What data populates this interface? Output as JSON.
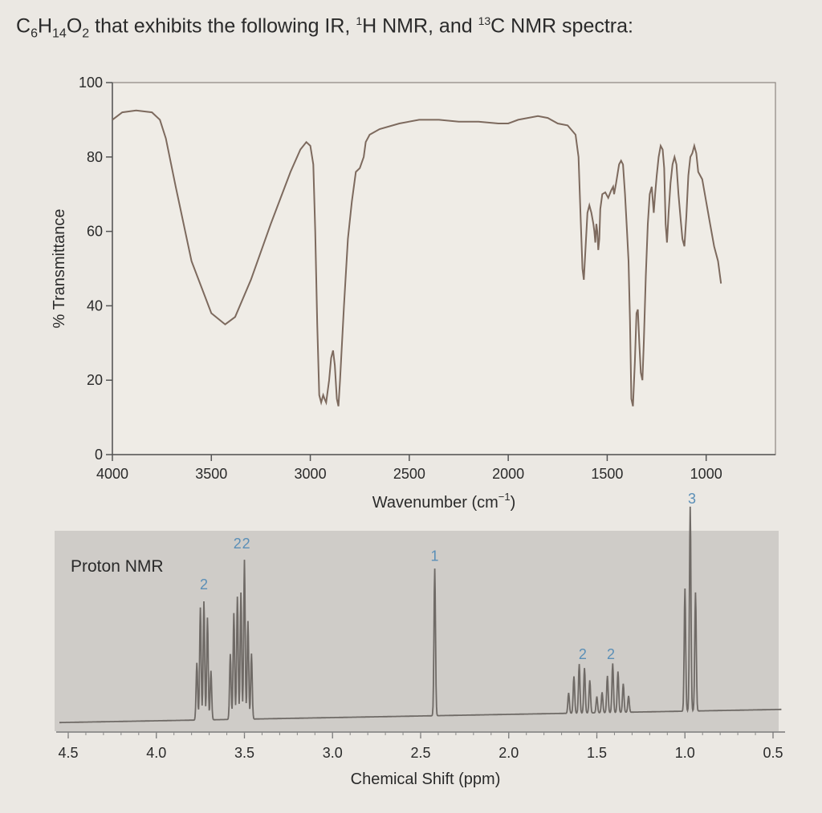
{
  "heading": {
    "formula_prefix": "C",
    "formula_sub1": "6",
    "formula_mid1": "H",
    "formula_sub2": "14",
    "formula_mid2": "O",
    "formula_sub3": "2",
    "text1": " that exhibits the following IR, ",
    "sup_h": "1",
    "text2": "H NMR, and ",
    "sup_c": "13",
    "text3": "C NMR spectra:"
  },
  "chart_data": [
    {
      "type": "line",
      "name": "ir-spectrum",
      "title": "",
      "xlabel": "Wavenumber (cm",
      "xlabel_sup": "−1",
      "xlabel_tail": ")",
      "ylabel": "% Transmittance",
      "xlim": [
        4000,
        650
      ],
      "ylim": [
        0,
        100
      ],
      "x_reversed": true,
      "x_ticks": [
        4000,
        3500,
        3000,
        2500,
        2000,
        1500,
        1000
      ],
      "y_ticks": [
        0,
        20,
        40,
        60,
        80,
        100
      ],
      "grid": false,
      "line_color": "#7d6a5e",
      "points": [
        [
          4000,
          90
        ],
        [
          3950,
          92
        ],
        [
          3880,
          92.5
        ],
        [
          3800,
          92
        ],
        [
          3760,
          90
        ],
        [
          3730,
          85
        ],
        [
          3680,
          72
        ],
        [
          3600,
          52
        ],
        [
          3500,
          38
        ],
        [
          3430,
          35
        ],
        [
          3380,
          37
        ],
        [
          3300,
          47
        ],
        [
          3200,
          62
        ],
        [
          3100,
          76
        ],
        [
          3050,
          82
        ],
        [
          3020,
          84
        ],
        [
          3000,
          83
        ],
        [
          2985,
          78
        ],
        [
          2975,
          60
        ],
        [
          2965,
          35
        ],
        [
          2955,
          16
        ],
        [
          2945,
          14
        ],
        [
          2935,
          16
        ],
        [
          2928,
          15
        ],
        [
          2920,
          14
        ],
        [
          2905,
          20
        ],
        [
          2895,
          26
        ],
        [
          2885,
          28
        ],
        [
          2876,
          24
        ],
        [
          2866,
          15
        ],
        [
          2858,
          13
        ],
        [
          2850,
          20
        ],
        [
          2830,
          40
        ],
        [
          2810,
          58
        ],
        [
          2790,
          68
        ],
        [
          2770,
          76
        ],
        [
          2750,
          77
        ],
        [
          2730,
          80
        ],
        [
          2720,
          84
        ],
        [
          2700,
          86
        ],
        [
          2650,
          87.5
        ],
        [
          2550,
          89
        ],
        [
          2450,
          90
        ],
        [
          2350,
          90
        ],
        [
          2250,
          89.5
        ],
        [
          2150,
          89.5
        ],
        [
          2050,
          89
        ],
        [
          2000,
          89
        ],
        [
          1950,
          90
        ],
        [
          1850,
          91
        ],
        [
          1800,
          90.5
        ],
        [
          1750,
          89
        ],
        [
          1700,
          88.5
        ],
        [
          1660,
          86
        ],
        [
          1645,
          80
        ],
        [
          1635,
          65
        ],
        [
          1625,
          50
        ],
        [
          1618,
          47
        ],
        [
          1610,
          55
        ],
        [
          1600,
          65
        ],
        [
          1590,
          67
        ],
        [
          1580,
          65
        ],
        [
          1570,
          62
        ],
        [
          1565,
          60
        ],
        [
          1560,
          57
        ],
        [
          1555,
          62
        ],
        [
          1550,
          60
        ],
        [
          1545,
          55
        ],
        [
          1540,
          58
        ],
        [
          1535,
          66
        ],
        [
          1525,
          70
        ],
        [
          1510,
          70.5
        ],
        [
          1495,
          69
        ],
        [
          1480,
          71
        ],
        [
          1470,
          72
        ],
        [
          1465,
          70
        ],
        [
          1455,
          73
        ],
        [
          1440,
          78
        ],
        [
          1430,
          79
        ],
        [
          1420,
          78
        ],
        [
          1410,
          70
        ],
        [
          1400,
          60
        ],
        [
          1392,
          52
        ],
        [
          1385,
          36
        ],
        [
          1378,
          15
        ],
        [
          1370,
          13
        ],
        [
          1360,
          25
        ],
        [
          1352,
          38
        ],
        [
          1345,
          39
        ],
        [
          1338,
          30
        ],
        [
          1330,
          22
        ],
        [
          1322,
          20
        ],
        [
          1315,
          30
        ],
        [
          1305,
          48
        ],
        [
          1295,
          62
        ],
        [
          1285,
          70
        ],
        [
          1275,
          72
        ],
        [
          1265,
          65
        ],
        [
          1258,
          70
        ],
        [
          1250,
          75
        ],
        [
          1240,
          80
        ],
        [
          1230,
          83
        ],
        [
          1220,
          82
        ],
        [
          1212,
          77
        ],
        [
          1205,
          62
        ],
        [
          1198,
          57
        ],
        [
          1190,
          65
        ],
        [
          1180,
          73
        ],
        [
          1170,
          78
        ],
        [
          1160,
          80
        ],
        [
          1150,
          78
        ],
        [
          1140,
          70
        ],
        [
          1130,
          64
        ],
        [
          1120,
          58
        ],
        [
          1110,
          56
        ],
        [
          1100,
          64
        ],
        [
          1090,
          75
        ],
        [
          1080,
          80
        ],
        [
          1070,
          81
        ],
        [
          1060,
          83
        ],
        [
          1050,
          81
        ],
        [
          1040,
          76
        ],
        [
          1030,
          75
        ],
        [
          1020,
          74
        ],
        [
          1000,
          68
        ],
        [
          980,
          62
        ],
        [
          960,
          56
        ],
        [
          940,
          52
        ],
        [
          925,
          46
        ]
      ]
    },
    {
      "type": "line",
      "name": "proton-nmr",
      "title": "Proton NMR",
      "xlabel": "Chemical Shift (ppm)",
      "ylabel": "",
      "xlim": [
        4.5,
        0.5
      ],
      "x_reversed": true,
      "x_ticks": [
        4.5,
        4.0,
        3.5,
        3.0,
        2.5,
        2.0,
        1.5,
        1.0,
        0.5
      ],
      "x_tick_labels": [
        "4.5",
        "4.0",
        "3.5",
        "3.0",
        "2.5",
        "2.0",
        "1.5",
        "1.0",
        "0.5"
      ],
      "grid": false,
      "background_color": "#cfccc8",
      "line_color": "#6f6a66",
      "label_color": "#5b8fb7",
      "integration_labels": [
        {
          "ppm": 3.73,
          "label": "2"
        },
        {
          "ppm": 3.54,
          "label": "2"
        },
        {
          "ppm": 3.49,
          "label": "2"
        },
        {
          "ppm": 2.42,
          "label": "1"
        },
        {
          "ppm": 1.58,
          "label": "2"
        },
        {
          "ppm": 1.42,
          "label": "2"
        },
        {
          "ppm": 0.96,
          "label": "3"
        }
      ],
      "peaks": [
        {
          "ppm": 3.77,
          "h": 0.28
        },
        {
          "ppm": 3.75,
          "h": 0.55
        },
        {
          "ppm": 3.73,
          "h": 0.58
        },
        {
          "ppm": 3.71,
          "h": 0.5
        },
        {
          "ppm": 3.69,
          "h": 0.24
        },
        {
          "ppm": 3.58,
          "h": 0.32
        },
        {
          "ppm": 3.56,
          "h": 0.52
        },
        {
          "ppm": 3.54,
          "h": 0.6
        },
        {
          "ppm": 3.52,
          "h": 0.62
        },
        {
          "ppm": 3.5,
          "h": 0.78
        },
        {
          "ppm": 3.48,
          "h": 0.48
        },
        {
          "ppm": 3.46,
          "h": 0.32
        },
        {
          "ppm": 2.42,
          "h": 0.72
        },
        {
          "ppm": 1.66,
          "h": 0.1
        },
        {
          "ppm": 1.63,
          "h": 0.18
        },
        {
          "ppm": 1.6,
          "h": 0.24
        },
        {
          "ppm": 1.57,
          "h": 0.22
        },
        {
          "ppm": 1.54,
          "h": 0.16
        },
        {
          "ppm": 1.5,
          "h": 0.08
        },
        {
          "ppm": 1.47,
          "h": 0.1
        },
        {
          "ppm": 1.44,
          "h": 0.18
        },
        {
          "ppm": 1.41,
          "h": 0.24
        },
        {
          "ppm": 1.38,
          "h": 0.2
        },
        {
          "ppm": 1.35,
          "h": 0.14
        },
        {
          "ppm": 1.32,
          "h": 0.08
        },
        {
          "ppm": 1.0,
          "h": 0.6
        },
        {
          "ppm": 0.97,
          "h": 1.0
        },
        {
          "ppm": 0.94,
          "h": 0.58
        }
      ]
    }
  ]
}
